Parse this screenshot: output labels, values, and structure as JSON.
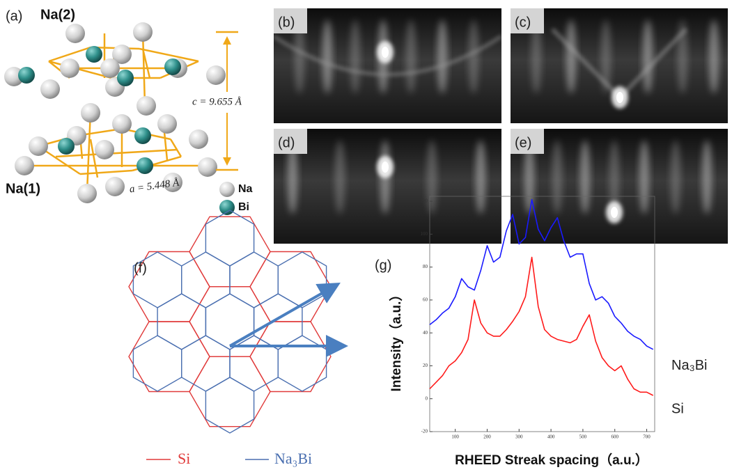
{
  "panel_a": {
    "label": "(a)",
    "top_site": "Na(2)",
    "bottom_site": "Na(1)",
    "c_param": "c = 9.655 Å",
    "a_param": "a = 5.448 Å",
    "legend": [
      "Na",
      "Bi"
    ]
  },
  "rheed_panels": [
    "(b)",
    "(c)",
    "(d)",
    "(e)"
  ],
  "panel_f": {
    "label": "(f)",
    "legend": [
      "Si",
      "Na₃Bi"
    ]
  },
  "chart_data": {
    "type": "line",
    "panel_label": "(g)",
    "x_label": "RHEED Streak spacing（a.u.）",
    "y_label": "Intensity（a.u.）",
    "x": [
      20,
      40,
      60,
      80,
      100,
      120,
      140,
      160,
      180,
      200,
      220,
      240,
      260,
      280,
      300,
      320,
      340,
      360,
      380,
      400,
      420,
      440,
      460,
      480,
      500,
      520,
      540,
      560,
      580,
      600,
      620,
      640,
      660,
      680,
      700,
      720
    ],
    "series": [
      {
        "name": "Na₃Bi",
        "color": "#1a1aff",
        "values": [
          45,
          48,
          52,
          55,
          62,
          73,
          68,
          66,
          78,
          93,
          83,
          86,
          102,
          112,
          94,
          98,
          121,
          103,
          96,
          104,
          110,
          96,
          86,
          88,
          88,
          70,
          60,
          62,
          58,
          50,
          46,
          41,
          38,
          36,
          32,
          30
        ]
      },
      {
        "name": "Si",
        "color": "#ff1a1a",
        "values": [
          6,
          10,
          14,
          20,
          23,
          28,
          36,
          60,
          46,
          40,
          38,
          38,
          42,
          47,
          53,
          62,
          86,
          56,
          42,
          38,
          36,
          35,
          34,
          36,
          44,
          51,
          35,
          25,
          20,
          17,
          20,
          12,
          6,
          4,
          4,
          2
        ]
      }
    ],
    "xlim": [
      20,
      725
    ],
    "ylim": [
      -20,
      123
    ],
    "xticks": [
      100,
      200,
      300,
      400,
      500,
      600,
      700
    ],
    "yticks": [
      -20,
      0,
      20,
      40,
      60,
      80,
      100,
      120
    ]
  }
}
